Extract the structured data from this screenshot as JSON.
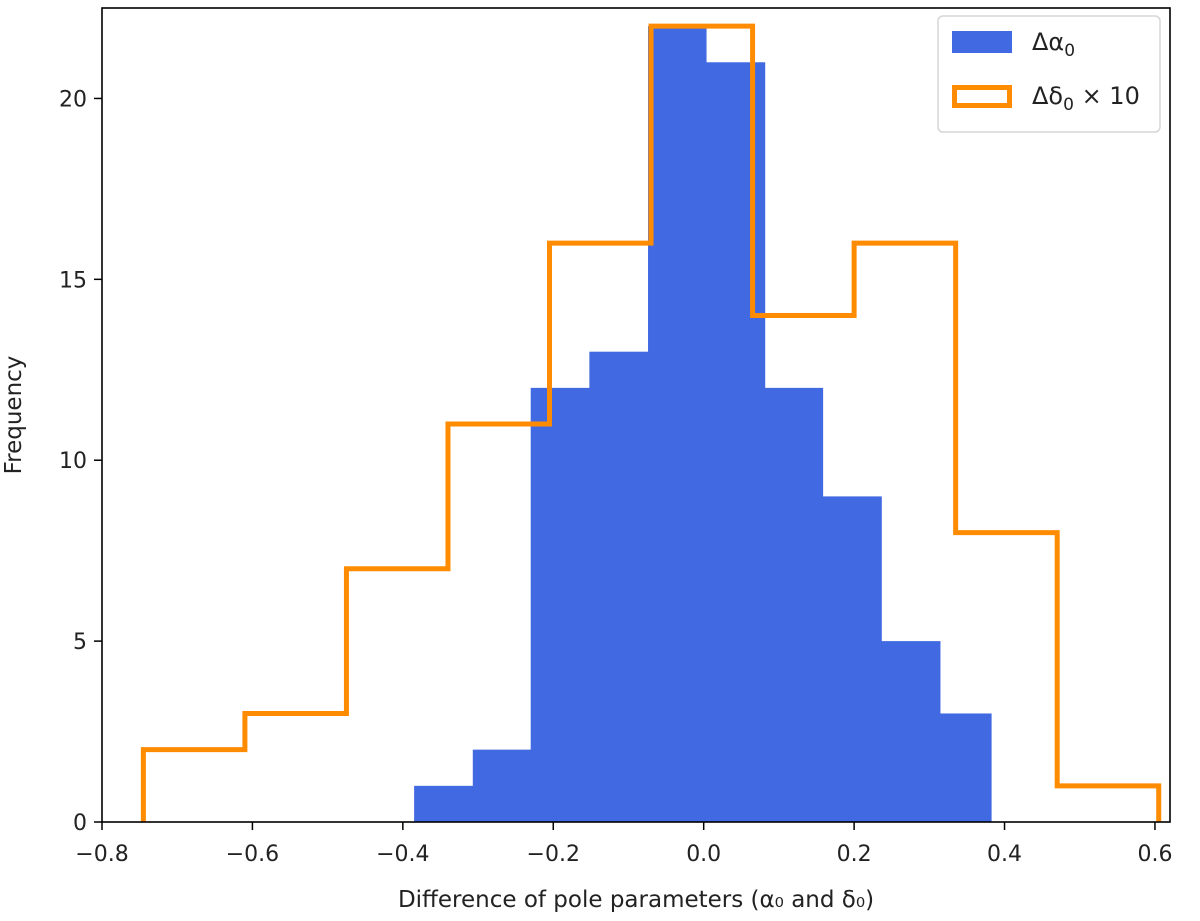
{
  "chart_data": {
    "type": "histogram",
    "title": "",
    "xlabel": "Difference of pole parameters (α₀ and δ₀)",
    "ylabel": "Frequency",
    "xlim": [
      -0.8,
      0.62
    ],
    "ylim": [
      0,
      22.5
    ],
    "xticks": [
      -0.8,
      -0.6,
      -0.4,
      -0.2,
      0.0,
      0.2,
      0.4,
      0.6
    ],
    "xtick_labels": [
      "−0.8",
      "−0.6",
      "−0.4",
      "−0.2",
      "0.0",
      "0.2",
      "0.4",
      "0.6"
    ],
    "yticks": [
      0,
      5,
      10,
      15,
      20
    ],
    "ytick_labels": [
      "0",
      "5",
      "10",
      "15",
      "20"
    ],
    "grid": false,
    "legend_position": "top-right",
    "series": [
      {
        "name": "Δα0",
        "legend_main": "Δα",
        "legend_sub": "0",
        "legend_suffix": "",
        "style": "filled",
        "color": "#4169e1",
        "bin_edges": [
          -0.385,
          -0.307,
          -0.23,
          -0.152,
          -0.074,
          0.003,
          0.081,
          0.158,
          0.236,
          0.314,
          0.382
        ],
        "counts": [
          1,
          2,
          12,
          13,
          22,
          21,
          12,
          9,
          5,
          3
        ]
      },
      {
        "name": "Δδ0 × 10",
        "legend_main": "Δδ",
        "legend_sub": "0",
        "legend_suffix": " × 10",
        "style": "step",
        "color": "#ff8c00",
        "bin_edges": [
          -0.745,
          -0.61,
          -0.475,
          -0.34,
          -0.205,
          -0.07,
          0.065,
          0.2,
          0.335,
          0.47,
          0.605
        ],
        "counts": [
          2,
          3,
          7,
          11,
          16,
          22,
          14,
          16,
          8,
          1
        ]
      }
    ]
  }
}
